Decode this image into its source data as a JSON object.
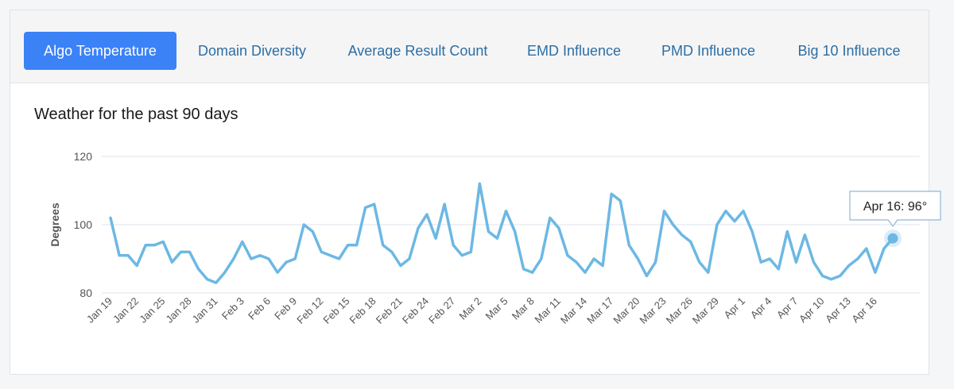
{
  "tabs": [
    {
      "label": "Algo Temperature",
      "active": true
    },
    {
      "label": "Domain Diversity",
      "active": false
    },
    {
      "label": "Average Result Count",
      "active": false
    },
    {
      "label": "EMD Influence",
      "active": false
    },
    {
      "label": "PMD Influence",
      "active": false
    },
    {
      "label": "Big 10 Influence",
      "active": false
    }
  ],
  "colors": {
    "accent": "#3b82f6",
    "tab_text": "#2d6ea3",
    "line": "#6cb8e4",
    "grid": "#dfe3ec"
  },
  "tooltip": {
    "text": "Apr 16: 96°"
  },
  "chart_data": {
    "type": "line",
    "title": "Weather for the past 90 days",
    "xlabel": "",
    "ylabel": "Degrees",
    "ylim": [
      80,
      120
    ],
    "yticks": [
      80,
      100,
      120
    ],
    "grid": true,
    "x_tick_labels": [
      "Jan 19",
      "Jan 22",
      "Jan 25",
      "Jan 28",
      "Jan 31",
      "Feb 3",
      "Feb 6",
      "Feb 9",
      "Feb 12",
      "Feb 15",
      "Feb 18",
      "Feb 21",
      "Feb 24",
      "Feb 27",
      "Mar 2",
      "Mar 5",
      "Mar 8",
      "Mar 11",
      "Mar 14",
      "Mar 17",
      "Mar 20",
      "Mar 23",
      "Mar 26",
      "Mar 29",
      "Apr 1",
      "Apr 4",
      "Apr 7",
      "Apr 10",
      "Apr 13",
      "Apr 16"
    ],
    "series": [
      {
        "values": [
          102,
          91,
          91,
          88,
          94,
          94,
          95,
          89,
          92,
          92,
          87,
          84,
          83,
          86,
          90,
          95,
          90,
          91,
          90,
          86,
          89,
          90,
          100,
          98,
          92,
          91,
          90,
          94,
          94,
          105,
          106,
          94,
          92,
          88,
          90,
          99,
          103,
          96,
          106,
          94,
          91,
          92,
          112,
          98,
          96,
          104,
          98,
          87,
          86,
          90,
          102,
          99,
          91,
          89,
          86,
          90,
          88,
          109,
          107,
          94,
          90,
          85,
          89,
          104,
          100,
          97,
          95,
          89,
          86,
          100,
          104,
          101,
          104,
          98,
          89,
          90,
          87,
          98,
          89,
          97,
          89,
          85,
          84,
          85,
          88,
          90,
          93,
          86,
          93,
          96
        ]
      }
    ],
    "highlight": {
      "date": "Apr 16",
      "value": 96
    }
  }
}
